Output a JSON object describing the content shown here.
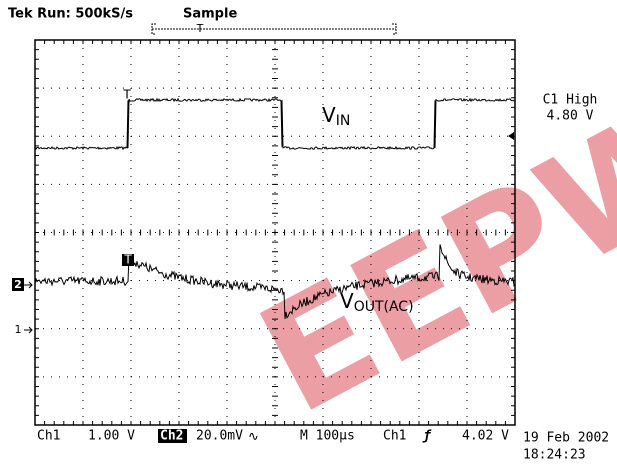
{
  "header": {
    "status": "Tek Run: 500kS/s",
    "mode": "Sample",
    "trigger_marker": "T"
  },
  "right_panel": {
    "measure_name": "C1 High",
    "measure_value": "4.80 V"
  },
  "traces": {
    "ch1_label": "V",
    "ch1_sub": "IN",
    "ch2_label": "V",
    "ch2_sub": "OUT(AC)",
    "ch1_marker": "T",
    "ch2_marker": "T"
  },
  "channel_markers": {
    "ch2": "2",
    "ch1": "1"
  },
  "readout": {
    "ch1": "Ch1",
    "ch1_scale": "1.00 V",
    "ch2": "Ch2",
    "ch2_scale": "20.0mV",
    "ch2_coupling": "∿",
    "timebase": "M 100µs",
    "trig_source": "Ch1",
    "trig_slope": "ƒ",
    "trig_level": "4.02 V"
  },
  "timestamp": {
    "date": "19 Feb 2002",
    "time": "18:24:23"
  },
  "watermark": "EEPW"
}
